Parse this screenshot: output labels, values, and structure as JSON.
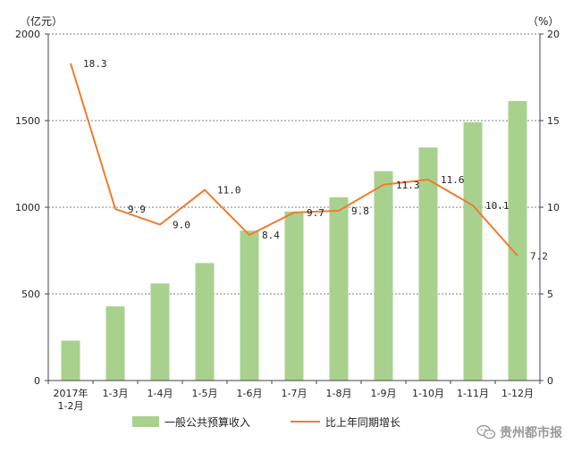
{
  "chart_data": {
    "type": "bar",
    "categories": [
      "2017年\n1-2月",
      "1-3月",
      "1-4月",
      "1-5月",
      "1-6月",
      "1-7月",
      "1-8月",
      "1-9月",
      "1-10月",
      "1-11月",
      "1-12月"
    ],
    "series": [
      {
        "name": "一般公共预算收入",
        "type": "bar",
        "axis": "left",
        "values": [
          230,
          428,
          560,
          678,
          865,
          975,
          1058,
          1208,
          1345,
          1490,
          1613
        ]
      },
      {
        "name": "比上年同期增长",
        "type": "line",
        "axis": "right",
        "values": [
          18.3,
          9.9,
          9.0,
          11.0,
          8.4,
          9.7,
          9.8,
          11.3,
          11.6,
          10.1,
          7.2
        ]
      }
    ],
    "y_left": {
      "unit": "（亿元）",
      "ylim": [
        0,
        2000
      ],
      "ticks": [
        0,
        500,
        1000,
        1500,
        2000
      ]
    },
    "y_right": {
      "unit": "（%）",
      "ylim": [
        0,
        20
      ],
      "ticks": [
        0,
        5,
        10,
        15,
        20
      ]
    },
    "line_labels": [
      "18.3",
      "9.9",
      "9.0",
      "11.0",
      "8.4",
      "9.7",
      "9.8",
      "11.3",
      "11.6",
      "10.1",
      "7.2"
    ],
    "grid": true,
    "legend_position": "bottom",
    "colors": {
      "bar": "#a9d18e",
      "line": "#ed7d31",
      "grid": "#7f7f7f",
      "text": "#222222"
    }
  },
  "watermark": {
    "text": "贵州都市报",
    "icon": "wechat-icon"
  }
}
